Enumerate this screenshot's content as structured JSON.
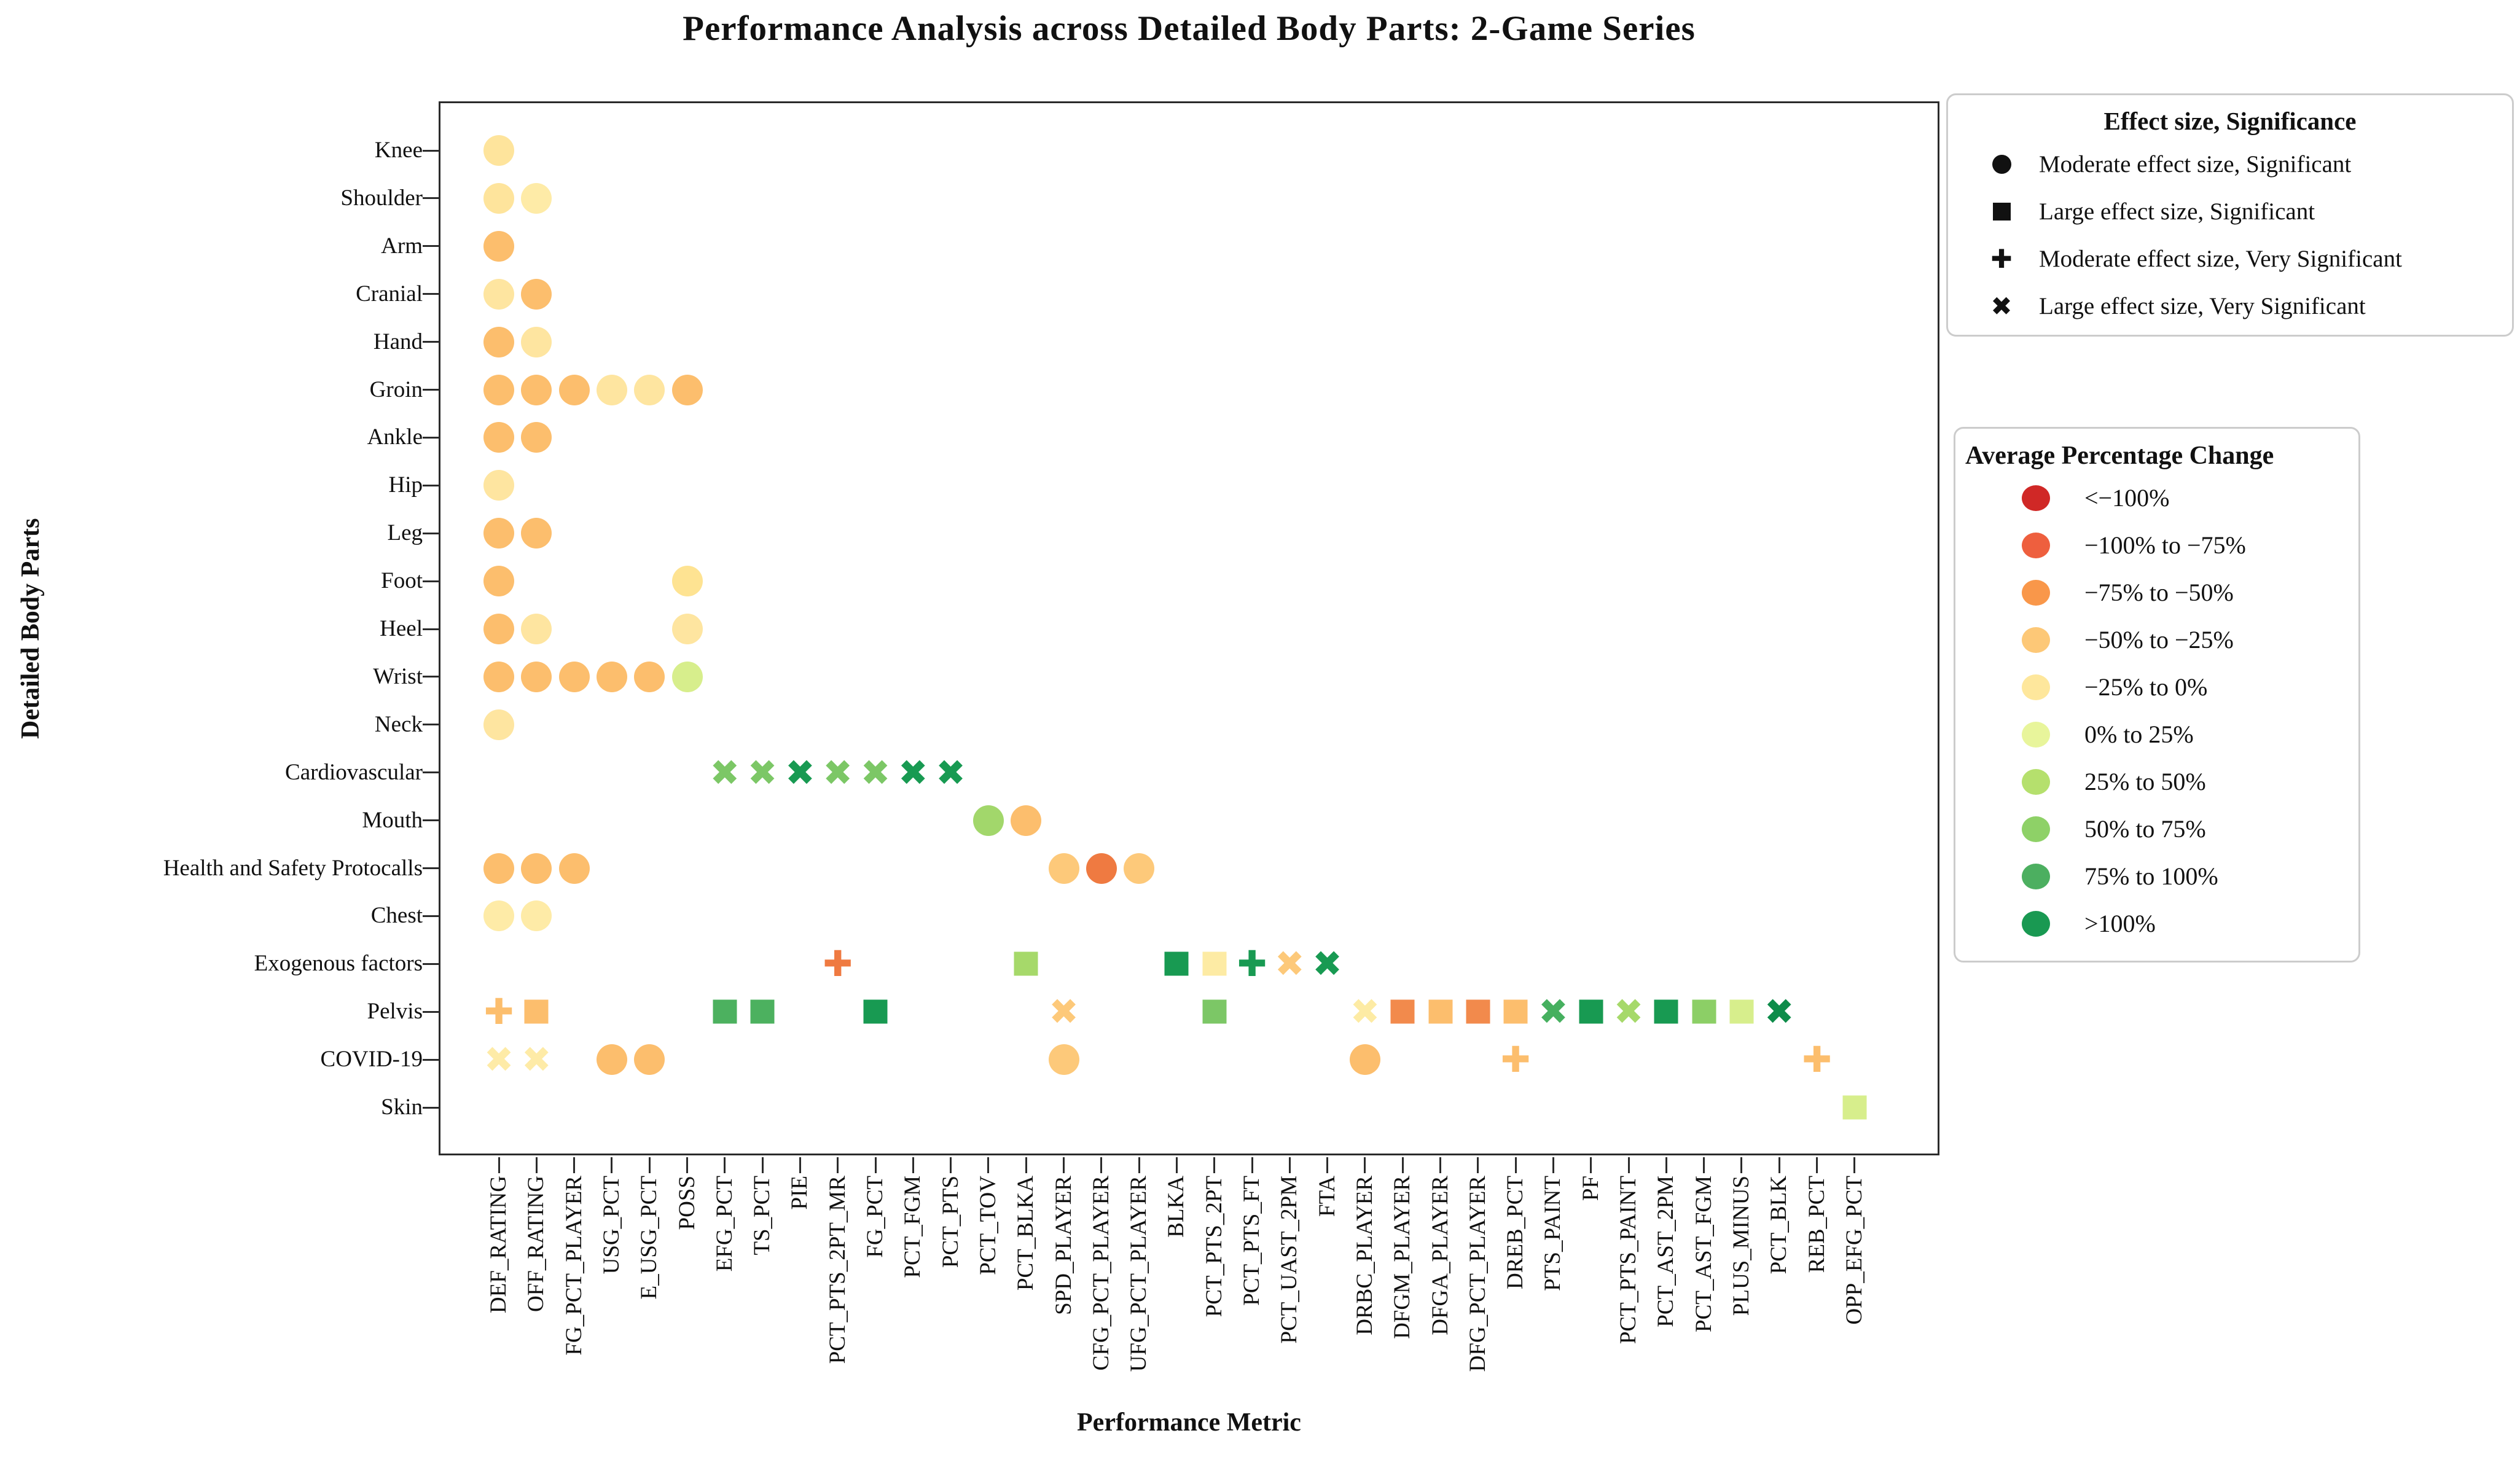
{
  "chart_data": {
    "type": "scatter",
    "title": "Performance Analysis across Detailed Body Parts: 2-Game Series",
    "xlabel": "Performance Metric",
    "ylabel": "Detailed Body Parts",
    "grid": false,
    "x_categories": [
      "DEF_RATING",
      "OFF_RATING",
      "FG_PCT_PLAYER",
      "USG_PCT",
      "E_USG_PCT",
      "POSS",
      "EFG_PCT",
      "TS_PCT",
      "PIE",
      "PCT_PTS_2PT_MR",
      "FG_PCT",
      "PCT_FGM",
      "PCT_PTS",
      "PCT_TOV",
      "PCT_BLKA",
      "SPD_PLAYER",
      "CFG_PCT_PLAYER",
      "UFG_PCT_PLAYER",
      "BLKA",
      "PCT_PTS_2PT",
      "PCT_PTS_FT",
      "PCT_UAST_2PM",
      "FTA",
      "DRBC_PLAYER",
      "DFGM_PLAYER",
      "DFGA_PLAYER",
      "DFG_PCT_PLAYER",
      "DREB_PCT",
      "PTS_PAINT",
      "PF",
      "PCT_PTS_PAINT",
      "PCT_AST_2PM",
      "PCT_AST_FGM",
      "PLUS_MINUS",
      "PCT_BLK",
      "REB_PCT",
      "OPP_EFG_PCT"
    ],
    "y_categories": [
      "Knee",
      "Shoulder",
      "Arm",
      "Cranial",
      "Hand",
      "Groin",
      "Ankle",
      "Hip",
      "Leg",
      "Foot",
      "Heel",
      "Wrist",
      "Neck",
      "Cardiovascular",
      "Mouth",
      "Health and Safety Protocalls",
      "Chest",
      "Exogenous factors",
      "Pelvis",
      "COVID-19",
      "Skin"
    ],
    "shape_legend": {
      "title": "Effect size, Significance",
      "items": [
        {
          "marker": "circle",
          "label": "Moderate effect size, Significant"
        },
        {
          "marker": "square",
          "label": "Large effect size, Significant"
        },
        {
          "marker": "plus",
          "label": "Moderate effect size, Very Significant"
        },
        {
          "marker": "x",
          "label": "Large effect size, Very Significant"
        }
      ]
    },
    "color_legend": {
      "title": "Average Percentage Change",
      "items": [
        {
          "color": "#d02826",
          "label": "<−100%"
        },
        {
          "color": "#ee5f3e",
          "label": "−100% to −75%"
        },
        {
          "color": "#f9974a",
          "label": "−75% to −50%"
        },
        {
          "color": "#fdc877",
          "label": "−50% to −25%"
        },
        {
          "color": "#fee79c",
          "label": "−25% to 0%"
        },
        {
          "color": "#e8f59b",
          "label": "0% to 25%"
        },
        {
          "color": "#b5e06d",
          "label": "25% to 50%"
        },
        {
          "color": "#8ed167",
          "label": "50% to 75%"
        },
        {
          "color": "#4caf60",
          "label": "75% to 100%"
        },
        {
          "color": "#199952",
          "label": ">100%"
        }
      ]
    },
    "points": [
      {
        "y": "Knee",
        "x": "DEF_RATING",
        "marker": "circle",
        "color": "#fee49c"
      },
      {
        "y": "Shoulder",
        "x": "DEF_RATING",
        "marker": "circle",
        "color": "#fee49c"
      },
      {
        "y": "Shoulder",
        "x": "OFF_RATING",
        "marker": "circle",
        "color": "#feeba7"
      },
      {
        "y": "Arm",
        "x": "DEF_RATING",
        "marker": "circle",
        "color": "#fcbe6d"
      },
      {
        "y": "Cranial",
        "x": "DEF_RATING",
        "marker": "circle",
        "color": "#fee5a0"
      },
      {
        "y": "Cranial",
        "x": "OFF_RATING",
        "marker": "circle",
        "color": "#fcbe6d"
      },
      {
        "y": "Hand",
        "x": "DEF_RATING",
        "marker": "circle",
        "color": "#fcbe6d"
      },
      {
        "y": "Hand",
        "x": "OFF_RATING",
        "marker": "circle",
        "color": "#fee5a0"
      },
      {
        "y": "Groin",
        "x": "DEF_RATING",
        "marker": "circle",
        "color": "#fcbe6d"
      },
      {
        "y": "Groin",
        "x": "OFF_RATING",
        "marker": "circle",
        "color": "#fcbe6d"
      },
      {
        "y": "Groin",
        "x": "FG_PCT_PLAYER",
        "marker": "circle",
        "color": "#fcbe6d"
      },
      {
        "y": "Groin",
        "x": "USG_PCT",
        "marker": "circle",
        "color": "#fee5a0"
      },
      {
        "y": "Groin",
        "x": "E_USG_PCT",
        "marker": "circle",
        "color": "#fee5a0"
      },
      {
        "y": "Groin",
        "x": "POSS",
        "marker": "circle",
        "color": "#fcbe6d"
      },
      {
        "y": "Ankle",
        "x": "DEF_RATING",
        "marker": "circle",
        "color": "#fcbe6d"
      },
      {
        "y": "Ankle",
        "x": "OFF_RATING",
        "marker": "circle",
        "color": "#fcbe6d"
      },
      {
        "y": "Hip",
        "x": "DEF_RATING",
        "marker": "circle",
        "color": "#fee5a0"
      },
      {
        "y": "Leg",
        "x": "DEF_RATING",
        "marker": "circle",
        "color": "#fcbe6d"
      },
      {
        "y": "Leg",
        "x": "OFF_RATING",
        "marker": "circle",
        "color": "#fcbe6d"
      },
      {
        "y": "Foot",
        "x": "DEF_RATING",
        "marker": "circle",
        "color": "#fcbe6d"
      },
      {
        "y": "Foot",
        "x": "POSS",
        "marker": "circle",
        "color": "#fee392"
      },
      {
        "y": "Heel",
        "x": "DEF_RATING",
        "marker": "circle",
        "color": "#fcbe6d"
      },
      {
        "y": "Heel",
        "x": "OFF_RATING",
        "marker": "circle",
        "color": "#fee5a0"
      },
      {
        "y": "Heel",
        "x": "POSS",
        "marker": "circle",
        "color": "#fee5a0"
      },
      {
        "y": "Wrist",
        "x": "DEF_RATING",
        "marker": "circle",
        "color": "#fcbe6d"
      },
      {
        "y": "Wrist",
        "x": "OFF_RATING",
        "marker": "circle",
        "color": "#fcbe6d"
      },
      {
        "y": "Wrist",
        "x": "FG_PCT_PLAYER",
        "marker": "circle",
        "color": "#fcbe6d"
      },
      {
        "y": "Wrist",
        "x": "USG_PCT",
        "marker": "circle",
        "color": "#fcbe6d"
      },
      {
        "y": "Wrist",
        "x": "E_USG_PCT",
        "marker": "circle",
        "color": "#fcbe6d"
      },
      {
        "y": "Wrist",
        "x": "POSS",
        "marker": "circle",
        "color": "#d7ee8c"
      },
      {
        "y": "Neck",
        "x": "DEF_RATING",
        "marker": "circle",
        "color": "#fee5a0"
      },
      {
        "y": "Cardiovascular",
        "x": "EFG_PCT",
        "marker": "x",
        "color": "#7cc766"
      },
      {
        "y": "Cardiovascular",
        "x": "TS_PCT",
        "marker": "x",
        "color": "#7cc766"
      },
      {
        "y": "Cardiovascular",
        "x": "PIE",
        "marker": "x",
        "color": "#189a52"
      },
      {
        "y": "Cardiovascular",
        "x": "PCT_PTS_2PT_MR",
        "marker": "x",
        "color": "#7cc766"
      },
      {
        "y": "Cardiovascular",
        "x": "FG_PCT",
        "marker": "x",
        "color": "#7cc766"
      },
      {
        "y": "Cardiovascular",
        "x": "PCT_FGM",
        "marker": "x",
        "color": "#189a52"
      },
      {
        "y": "Cardiovascular",
        "x": "PCT_PTS",
        "marker": "x",
        "color": "#189a52"
      },
      {
        "y": "Mouth",
        "x": "PCT_TOV",
        "marker": "circle",
        "color": "#a2d76b"
      },
      {
        "y": "Mouth",
        "x": "PCT_BLKA",
        "marker": "circle",
        "color": "#fcbe6d"
      },
      {
        "y": "Health and Safety Protocalls",
        "x": "DEF_RATING",
        "marker": "circle",
        "color": "#fcbe6d"
      },
      {
        "y": "Health and Safety Protocalls",
        "x": "OFF_RATING",
        "marker": "circle",
        "color": "#fcbe6d"
      },
      {
        "y": "Health and Safety Protocalls",
        "x": "FG_PCT_PLAYER",
        "marker": "circle",
        "color": "#fcbe6d"
      },
      {
        "y": "Health and Safety Protocalls",
        "x": "SPD_PLAYER",
        "marker": "circle",
        "color": "#fdc97a"
      },
      {
        "y": "Health and Safety Protocalls",
        "x": "CFG_PCT_PLAYER",
        "marker": "circle",
        "color": "#ef7a41"
      },
      {
        "y": "Health and Safety Protocalls",
        "x": "UFG_PCT_PLAYER",
        "marker": "circle",
        "color": "#fdc97a"
      },
      {
        "y": "Chest",
        "x": "DEF_RATING",
        "marker": "circle",
        "color": "#feeba7"
      },
      {
        "y": "Chest",
        "x": "OFF_RATING",
        "marker": "circle",
        "color": "#feeba7"
      },
      {
        "y": "Exogenous factors",
        "x": "PCT_PTS_2PT_MR",
        "marker": "plus",
        "color": "#ef7a41"
      },
      {
        "y": "Exogenous factors",
        "x": "PCT_BLKA",
        "marker": "square",
        "color": "#a6d96a"
      },
      {
        "y": "Exogenous factors",
        "x": "BLKA",
        "marker": "square",
        "color": "#189a52"
      },
      {
        "y": "Exogenous factors",
        "x": "PCT_PTS_2PT",
        "marker": "square",
        "color": "#fdeba4"
      },
      {
        "y": "Exogenous factors",
        "x": "PCT_PTS_FT",
        "marker": "plus",
        "color": "#189a52"
      },
      {
        "y": "Exogenous factors",
        "x": "PCT_UAST_2PM",
        "marker": "x",
        "color": "#fdc97a"
      },
      {
        "y": "Exogenous factors",
        "x": "FTA",
        "marker": "x",
        "color": "#189a52"
      },
      {
        "y": "Pelvis",
        "x": "DEF_RATING",
        "marker": "plus",
        "color": "#fcbe6d"
      },
      {
        "y": "Pelvis",
        "x": "OFF_RATING",
        "marker": "square",
        "color": "#fcbe6d"
      },
      {
        "y": "Pelvis",
        "x": "EFG_PCT",
        "marker": "square",
        "color": "#4cb15f"
      },
      {
        "y": "Pelvis",
        "x": "TS_PCT",
        "marker": "square",
        "color": "#4cb15f"
      },
      {
        "y": "Pelvis",
        "x": "FG_PCT",
        "marker": "square",
        "color": "#189a52"
      },
      {
        "y": "Pelvis",
        "x": "SPD_PLAYER",
        "marker": "x",
        "color": "#fdc97a"
      },
      {
        "y": "Pelvis",
        "x": "PCT_PTS_2PT",
        "marker": "square",
        "color": "#7cc766"
      },
      {
        "y": "Pelvis",
        "x": "DRBC_PLAYER",
        "marker": "x",
        "color": "#fdeba4"
      },
      {
        "y": "Pelvis",
        "x": "DFGM_PLAYER",
        "marker": "square",
        "color": "#f28a4c"
      },
      {
        "y": "Pelvis",
        "x": "DFGA_PLAYER",
        "marker": "square",
        "color": "#fcbe6d"
      },
      {
        "y": "Pelvis",
        "x": "DFG_PCT_PLAYER",
        "marker": "square",
        "color": "#f28a4c"
      },
      {
        "y": "Pelvis",
        "x": "DREB_PCT",
        "marker": "square",
        "color": "#fcbe6d"
      },
      {
        "y": "Pelvis",
        "x": "PTS_PAINT",
        "marker": "x",
        "color": "#46b05f"
      },
      {
        "y": "Pelvis",
        "x": "PF",
        "marker": "square",
        "color": "#189a52"
      },
      {
        "y": "Pelvis",
        "x": "PCT_PTS_PAINT",
        "marker": "x",
        "color": "#a6d96a"
      },
      {
        "y": "Pelvis",
        "x": "PCT_AST_2PM",
        "marker": "square",
        "color": "#189a52"
      },
      {
        "y": "Pelvis",
        "x": "PCT_AST_FGM",
        "marker": "square",
        "color": "#8ccf66"
      },
      {
        "y": "Pelvis",
        "x": "PLUS_MINUS",
        "marker": "square",
        "color": "#d7ee8c"
      },
      {
        "y": "Pelvis",
        "x": "PCT_BLK",
        "marker": "x",
        "color": "#0e8c4a"
      },
      {
        "y": "COVID-19",
        "x": "DEF_RATING",
        "marker": "x",
        "color": "#feeba7"
      },
      {
        "y": "COVID-19",
        "x": "OFF_RATING",
        "marker": "x",
        "color": "#feeba7"
      },
      {
        "y": "COVID-19",
        "x": "USG_PCT",
        "marker": "circle",
        "color": "#fcbe6d"
      },
      {
        "y": "COVID-19",
        "x": "E_USG_PCT",
        "marker": "circle",
        "color": "#fcbe6d"
      },
      {
        "y": "COVID-19",
        "x": "SPD_PLAYER",
        "marker": "circle",
        "color": "#fdc97a"
      },
      {
        "y": "COVID-19",
        "x": "DRBC_PLAYER",
        "marker": "circle",
        "color": "#fcbe6d"
      },
      {
        "y": "COVID-19",
        "x": "DREB_PCT",
        "marker": "plus",
        "color": "#fcbe6d"
      },
      {
        "y": "COVID-19",
        "x": "REB_PCT",
        "marker": "plus",
        "color": "#fcbe6d"
      },
      {
        "y": "Skin",
        "x": "OPP_EFG_PCT",
        "marker": "square",
        "color": "#d7ee8c"
      }
    ]
  }
}
